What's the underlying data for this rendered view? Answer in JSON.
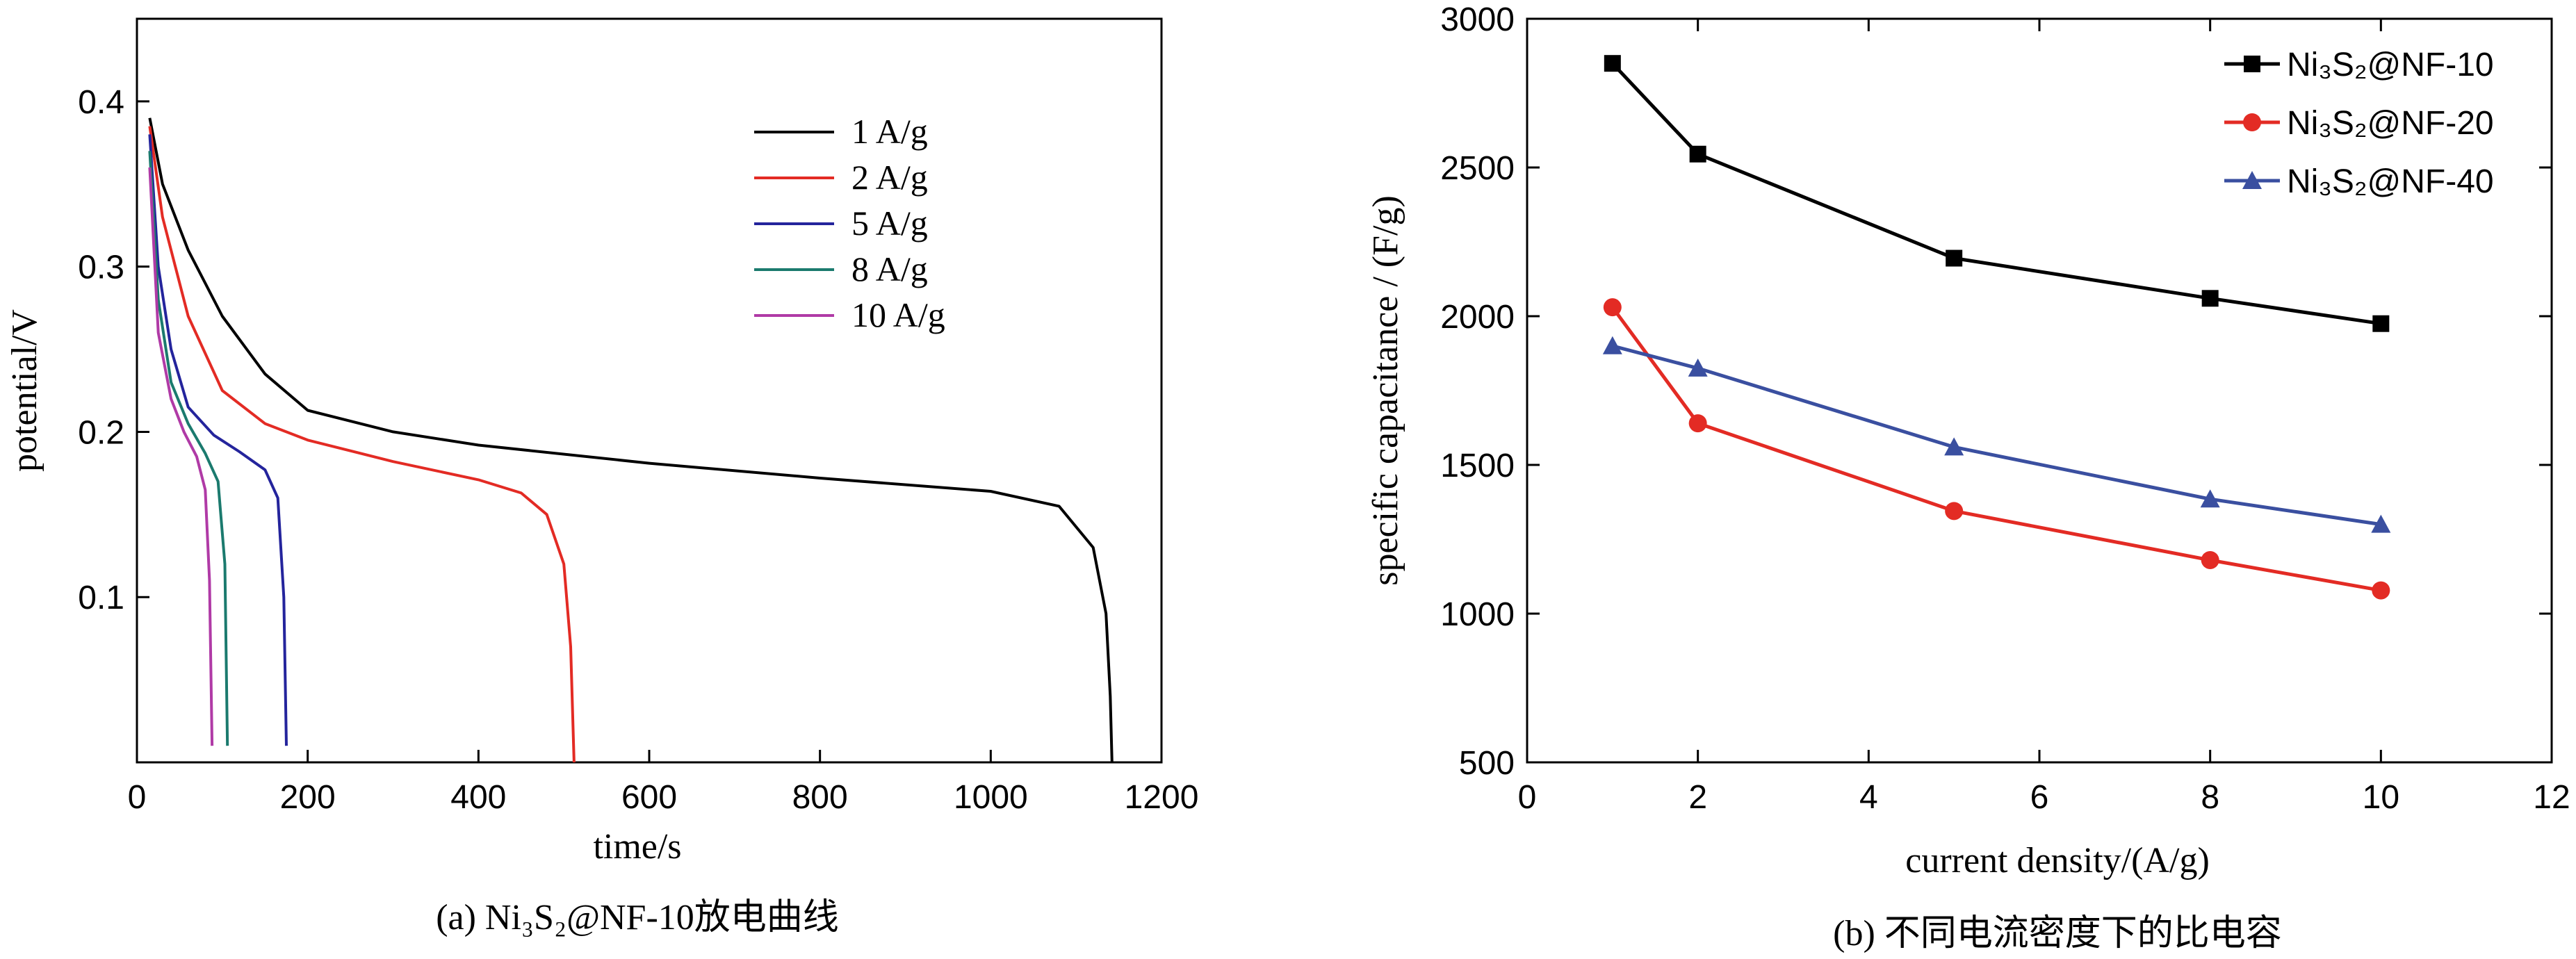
{
  "chart_data": [
    {
      "type": "line",
      "caption": "(a) Ni₃S₂@NF-10放电曲线",
      "xlabel": "time/s",
      "ylabel": "potential/V",
      "xlim": [
        0,
        1200
      ],
      "ylim": [
        0,
        0.45
      ],
      "xticks": [
        0,
        200,
        400,
        600,
        800,
        1000,
        1200
      ],
      "yticks": [
        0.1,
        0.2,
        0.3,
        0.4
      ],
      "grid": false,
      "legend_position": "top-middle",
      "series": [
        {
          "name": "1 A/g",
          "color": "#000000",
          "x": [
            15,
            30,
            60,
            100,
            150,
            200,
            300,
            400,
            600,
            800,
            1000,
            1080,
            1120,
            1135,
            1140,
            1142
          ],
          "y": [
            0.39,
            0.35,
            0.31,
            0.27,
            0.235,
            0.213,
            0.2,
            0.192,
            0.181,
            0.172,
            0.164,
            0.155,
            0.13,
            0.09,
            0.04,
            0.0
          ]
        },
        {
          "name": "2 A/g",
          "color": "#e32b24",
          "x": [
            15,
            30,
            60,
            100,
            150,
            200,
            300,
            400,
            450,
            480,
            500,
            508,
            512
          ],
          "y": [
            0.385,
            0.33,
            0.27,
            0.225,
            0.205,
            0.195,
            0.182,
            0.171,
            0.163,
            0.15,
            0.12,
            0.07,
            0.0
          ]
        },
        {
          "name": "5 A/g",
          "color": "#24249c",
          "x": [
            15,
            25,
            40,
            60,
            90,
            120,
            150,
            165,
            172,
            175
          ],
          "y": [
            0.38,
            0.3,
            0.25,
            0.215,
            0.198,
            0.188,
            0.177,
            0.16,
            0.1,
            0.01
          ]
        },
        {
          "name": "8 A/g",
          "color": "#1b7a6e",
          "x": [
            15,
            25,
            40,
            60,
            80,
            95,
            103,
            106
          ],
          "y": [
            0.37,
            0.28,
            0.23,
            0.205,
            0.187,
            0.17,
            0.12,
            0.01
          ]
        },
        {
          "name": "10 A/g",
          "color": "#b03aa6",
          "x": [
            15,
            25,
            40,
            55,
            70,
            80,
            85,
            88
          ],
          "y": [
            0.36,
            0.26,
            0.22,
            0.2,
            0.185,
            0.165,
            0.11,
            0.01
          ]
        }
      ]
    },
    {
      "type": "line",
      "caption": "(b) 不同电流密度下的比电容",
      "xlabel": "current density/(A/g)",
      "ylabel": "specific capacitance / (F/g)",
      "xlim": [
        0,
        12
      ],
      "ylim": [
        500,
        3000
      ],
      "xticks": [
        0,
        2,
        4,
        6,
        8,
        10,
        12
      ],
      "yticks": [
        500,
        1000,
        1500,
        2000,
        2500,
        3000
      ],
      "grid": false,
      "legend_position": "top-right",
      "x": [
        1,
        2,
        5,
        8,
        10
      ],
      "series": [
        {
          "name": "Ni₃S₂@NF-10",
          "color": "#000000",
          "marker": "square",
          "values": [
            2850,
            2545,
            2195,
            2060,
            1975
          ]
        },
        {
          "name": "Ni₃S₂@NF-20",
          "color": "#e32b24",
          "marker": "circle",
          "values": [
            2030,
            1640,
            1345,
            1180,
            1078
          ]
        },
        {
          "name": "Ni₃S₂@NF-40",
          "color": "#3a4fa0",
          "marker": "triangle",
          "values": [
            1900,
            1825,
            1560,
            1385,
            1300
          ]
        }
      ]
    }
  ]
}
